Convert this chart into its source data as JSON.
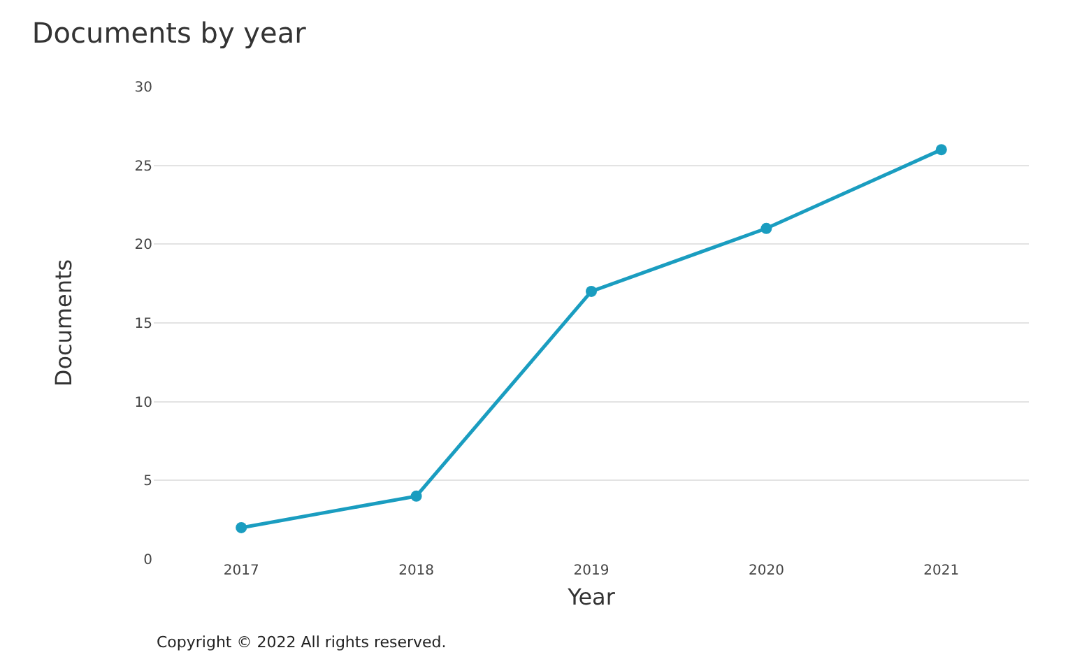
{
  "chart_data": {
    "type": "line",
    "title": "Documents by year",
    "xlabel": "Year",
    "ylabel": "Documents",
    "categories": [
      "2017",
      "2018",
      "2019",
      "2020",
      "2021"
    ],
    "series": [
      {
        "color": "#1a9dc0",
        "values": [
          2,
          4,
          17,
          21,
          26
        ]
      }
    ],
    "ylim": [
      0,
      30
    ],
    "yticks": [
      0,
      5,
      10,
      15,
      20,
      25,
      30
    ],
    "grid": "y",
    "marker": "circle",
    "line_style": "solid",
    "annotations": [
      "Copyright © 2022 All rights reserved."
    ]
  }
}
